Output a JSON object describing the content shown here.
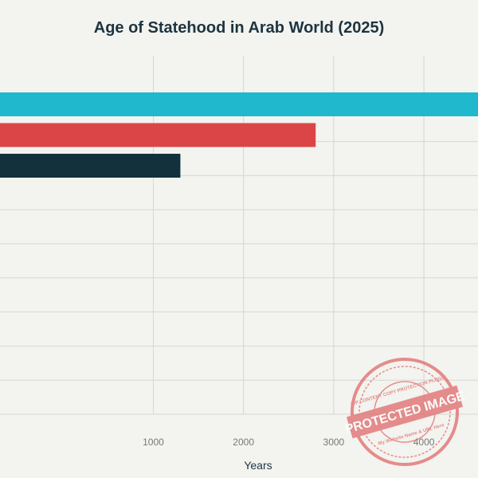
{
  "chart_data": {
    "type": "bar",
    "orientation": "horizontal",
    "title": "Age of Statehood in Arab World (2025)",
    "xlabel": "Years",
    "ylabel": "",
    "xlim": [
      -700,
      4600
    ],
    "xticks": [
      1000,
      2000,
      3000,
      4000
    ],
    "grid": true,
    "category_slots": 10,
    "bars": [
      {
        "value": 5000,
        "color": "#1fb8cc"
      },
      {
        "value": 2800,
        "color": "#dc4547"
      },
      {
        "value": 1300,
        "color": "#13313c"
      }
    ]
  },
  "watermark": {
    "main": "PROTECTED IMAGE",
    "upper": "WP CONTENT COPY PROTECTION PLUGIN",
    "lower": "My Website Name & URL Here",
    "color": "#e06a6a"
  }
}
